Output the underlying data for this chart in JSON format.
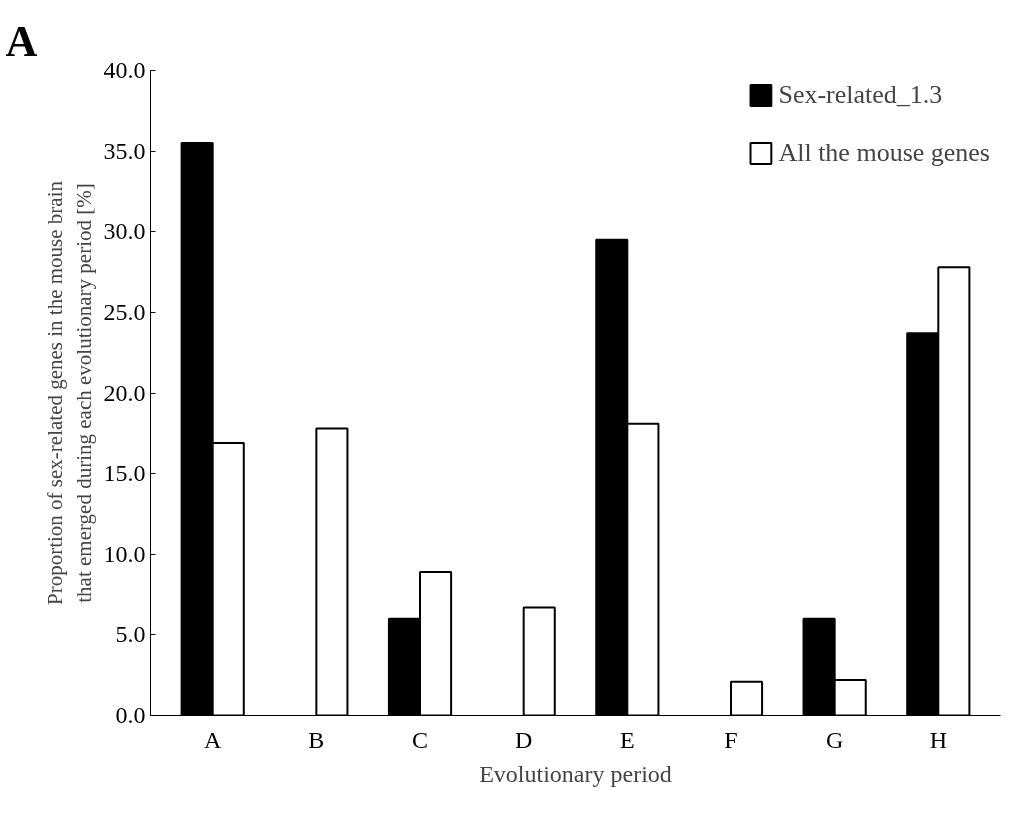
{
  "chart_data": {
    "type": "bar",
    "xlabel": "Evolutionary period",
    "ylabel": "Proportion of sex-related genes in the mouse brain\nthat emerged during each evolutionary period [%]",
    "annotations": [
      "A"
    ],
    "categories": [
      "A",
      "B",
      "C",
      "D",
      "E",
      "F",
      "G",
      "H"
    ],
    "series": [
      {
        "name": "Sex-related_1.3",
        "color": "#000000",
        "values": [
          35.5,
          null,
          6.0,
          null,
          29.5,
          null,
          6.0,
          23.7
        ]
      },
      {
        "name": "All the mouse genes",
        "color": "#ffffff",
        "values": [
          16.9,
          17.8,
          8.9,
          6.7,
          18.1,
          2.1,
          2.2,
          27.8
        ]
      }
    ],
    "ylim": [
      0,
      40
    ],
    "yticks": [
      {
        "value": 0,
        "label": "0.0"
      },
      {
        "value": 5,
        "label": "5.0"
      },
      {
        "value": 10,
        "label": "10.0"
      },
      {
        "value": 15,
        "label": "15.0"
      },
      {
        "value": 20,
        "label": "20.0"
      },
      {
        "value": 25,
        "label": "25.0"
      },
      {
        "value": 30,
        "label": "30.0"
      },
      {
        "value": 35,
        "label": "35.0"
      },
      {
        "value": 40,
        "label": "40.0"
      }
    ],
    "grid": false,
    "legend": "top right"
  }
}
